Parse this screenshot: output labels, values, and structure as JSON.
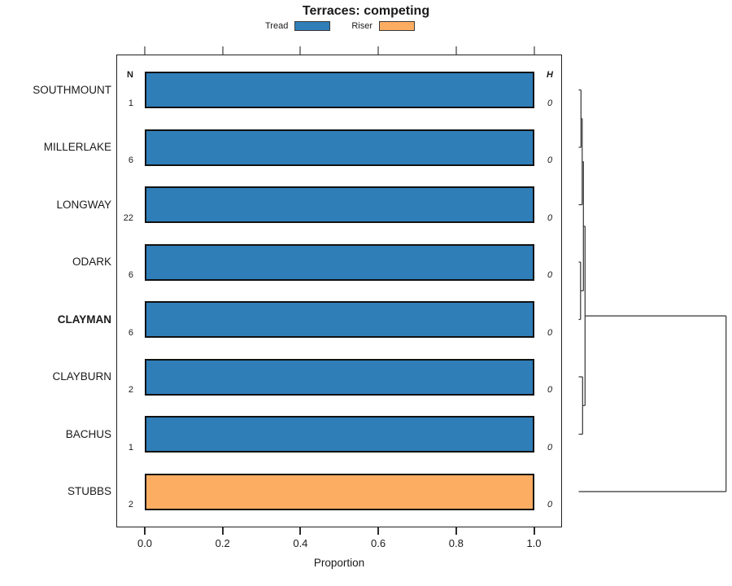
{
  "chart_data": {
    "type": "bar",
    "orientation": "horizontal",
    "title": "Terraces: competing",
    "xlabel": "Proportion",
    "xlim": [
      0.0,
      1.0
    ],
    "x_tick_values": [
      0.0,
      0.2,
      0.4,
      0.6,
      0.8,
      1.0
    ],
    "x_tick_labels": [
      "0.0",
      "0.2",
      "0.4",
      "0.6",
      "0.8",
      "1.0"
    ],
    "axis_mirrored_top": true,
    "legend_position": "top",
    "n_header": "N",
    "h_header": "H",
    "legend": [
      {
        "label": "Tread",
        "color": "#2F7EB8"
      },
      {
        "label": "Riser",
        "color": "#FCAD62"
      }
    ],
    "rows": [
      {
        "label": "SOUTHMOUNT",
        "n": "1",
        "h": "0",
        "series": "Tread",
        "proportion": 1.0,
        "bold": false
      },
      {
        "label": "MILLERLAKE",
        "n": "6",
        "h": "0",
        "series": "Tread",
        "proportion": 1.0,
        "bold": false
      },
      {
        "label": "LONGWAY",
        "n": "22",
        "h": "0",
        "series": "Tread",
        "proportion": 1.0,
        "bold": false
      },
      {
        "label": "ODARK",
        "n": "6",
        "h": "0",
        "series": "Tread",
        "proportion": 1.0,
        "bold": false
      },
      {
        "label": "CLAYMAN",
        "n": "6",
        "h": "0",
        "series": "Tread",
        "proportion": 1.0,
        "bold": true
      },
      {
        "label": "CLAYBURN",
        "n": "2",
        "h": "0",
        "series": "Tread",
        "proportion": 1.0,
        "bold": false
      },
      {
        "label": "BACHUS",
        "n": "1",
        "h": "0",
        "series": "Tread",
        "proportion": 1.0,
        "bold": false
      },
      {
        "label": "STUBBS",
        "n": "2",
        "h": "0",
        "series": "Riser",
        "proportion": 1.0,
        "bold": false
      }
    ],
    "dendrogram": {
      "newick": "(((((SOUTHMOUNT,MILLERLAKE),LONGWAY),(ODARK,CLAYMAN)),(CLAYBURN,BACHUS)),STUBBS);",
      "tree": {
        "height": 1.0,
        "children": [
          {
            "height": 0.0431,
            "children": [
              {
                "height": 0.032,
                "children": [
                  {
                    "height": 0.0238,
                    "children": [
                      {
                        "height": 0.0155,
                        "children": [
                          {
                            "leaf": "SOUTHMOUNT"
                          },
                          {
                            "leaf": "MILLERLAKE"
                          }
                        ]
                      },
                      {
                        "leaf": "LONGWAY"
                      }
                    ]
                  },
                  {
                    "height": 0.0127,
                    "children": [
                      {
                        "leaf": "ODARK"
                      },
                      {
                        "leaf": "CLAYMAN"
                      }
                    ]
                  }
                ]
              },
              {
                "height": 0.0265,
                "children": [
                  {
                    "leaf": "CLAYBURN"
                  },
                  {
                    "leaf": "BACHUS"
                  }
                ]
              }
            ]
          },
          {
            "leaf": "STUBBS"
          }
        ]
      }
    }
  }
}
